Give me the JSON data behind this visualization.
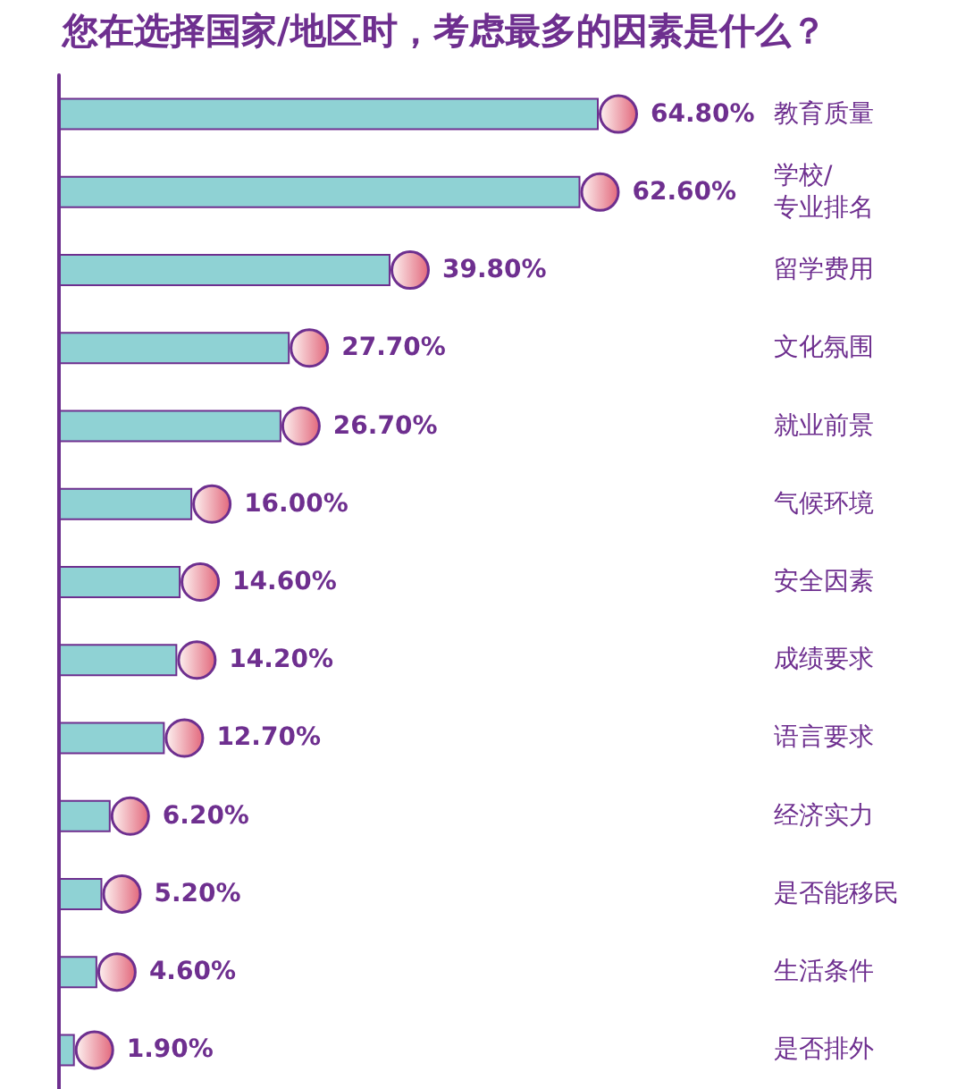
{
  "chart_data": {
    "type": "bar",
    "orientation": "horizontal",
    "title": "您在选择国家/地区时，考虑最多的因素是什么？",
    "categories": [
      "教育质量",
      "学校/\n专业排名",
      "留学费用",
      "文化氛围",
      "就业前景",
      "气候环境",
      "安全因素",
      "成绩要求",
      "语言要求",
      "经济实力",
      "是否能移民",
      "生活条件",
      "是否排外"
    ],
    "values": [
      64.8,
      62.6,
      39.8,
      27.7,
      26.7,
      16.0,
      14.6,
      14.2,
      12.7,
      6.2,
      5.2,
      4.6,
      1.9
    ],
    "value_labels": [
      "64.80%",
      "62.60%",
      "39.80%",
      "27.70%",
      "26.70%",
      "16.00%",
      "14.60%",
      "14.20%",
      "12.70%",
      "6.20%",
      "5.20%",
      "4.60%",
      "1.90%"
    ],
    "color": "#8fd2d4"
  }
}
